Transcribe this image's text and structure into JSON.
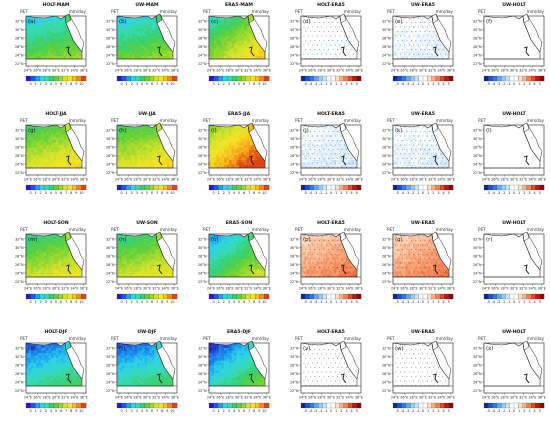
{
  "figure": {
    "corner_label": "PET",
    "unit": "mm/day",
    "lat_ticks": [
      "32°N",
      "30°N",
      "28°N",
      "26°N",
      "24°N",
      "22°N"
    ],
    "lon_ticks": [
      "24°E",
      "26°E",
      "28°E",
      "30°E",
      "32°E",
      "34°E",
      "36°E"
    ],
    "abs_colorbar": {
      "ticks": [
        "0",
        "1",
        "2",
        "3",
        "4",
        "5",
        "6",
        "7",
        "8",
        "9",
        "10"
      ],
      "colors": [
        "#2e17c9",
        "#1f55e6",
        "#1aa2f0",
        "#2fd2e8",
        "#37dbb0",
        "#37cf72",
        "#5fd13a",
        "#9ad82f",
        "#d2e22a",
        "#f3e523",
        "#f8c01e",
        "#f28a18",
        "#e04414"
      ]
    },
    "diff_colorbar": {
      "ticks": [
        "-5",
        "-4",
        "-3",
        "-2",
        "-1",
        "0",
        "1",
        "2",
        "3",
        "4",
        "5"
      ],
      "colors": [
        "#0b2a8f",
        "#1f4fd2",
        "#2e7ae8",
        "#5ea6f2",
        "#95c9f6",
        "#c8e4fa",
        "#ffffff",
        "#ffffff",
        "#fde0c8",
        "#fbb088",
        "#f47f4e",
        "#e44a23",
        "#c4150f",
        "#8e0606"
      ]
    }
  },
  "chart_data": [
    {
      "type": "heatmap",
      "letter": "(a)",
      "title": "HOLT-MAM",
      "variable": "PET",
      "unit": "mm/day",
      "colorbar": "abs",
      "mean_value": 4.5
    },
    {
      "type": "heatmap",
      "letter": "(b)",
      "title": "UW-MAM",
      "variable": "PET",
      "unit": "mm/day",
      "colorbar": "abs",
      "mean_value": 4.5
    },
    {
      "type": "heatmap",
      "letter": "(c)",
      "title": "ERA5-MAM",
      "variable": "PET",
      "unit": "mm/day",
      "colorbar": "abs",
      "mean_value": 6
    },
    {
      "type": "heatmap",
      "letter": "(d)",
      "title": "HOLT-ERA5",
      "variable": "PET",
      "unit": "mm/day",
      "colorbar": "diff",
      "mean_value": -0.3,
      "stippled": true
    },
    {
      "type": "heatmap",
      "letter": "(e)",
      "title": "UW-ERA5",
      "variable": "PET",
      "unit": "mm/day",
      "colorbar": "diff",
      "mean_value": -0.6,
      "stippled": true
    },
    {
      "type": "heatmap",
      "letter": "(f)",
      "title": "UW-HOLT",
      "variable": "PET",
      "unit": "mm/day",
      "colorbar": "diff",
      "mean_value": 0,
      "stippled": false
    },
    {
      "type": "heatmap",
      "letter": "(g)",
      "title": "HOLT-JJA",
      "variable": "PET",
      "unit": "mm/day",
      "colorbar": "abs",
      "mean_value": 6.5
    },
    {
      "type": "heatmap",
      "letter": "(h)",
      "title": "UW-JJA",
      "variable": "PET",
      "unit": "mm/day",
      "colorbar": "abs",
      "mean_value": 6.5
    },
    {
      "type": "heatmap",
      "letter": "(i)",
      "title": "ERA5-JJA",
      "variable": "PET",
      "unit": "mm/day",
      "colorbar": "abs",
      "mean_value": 8.5
    },
    {
      "type": "heatmap",
      "letter": "(j)",
      "title": "HOLT-ERA5",
      "variable": "PET",
      "unit": "mm/day",
      "colorbar": "diff",
      "mean_value": -0.8,
      "stippled": true
    },
    {
      "type": "heatmap",
      "letter": "(k)",
      "title": "UW-ERA5",
      "variable": "PET",
      "unit": "mm/day",
      "colorbar": "diff",
      "mean_value": -0.7,
      "stippled": true
    },
    {
      "type": "heatmap",
      "letter": "(l)",
      "title": "UW-HOLT",
      "variable": "PET",
      "unit": "mm/day",
      "colorbar": "diff",
      "mean_value": 0,
      "stippled": false
    },
    {
      "type": "heatmap",
      "letter": "(m)",
      "title": "HOLT-SON",
      "variable": "PET",
      "unit": "mm/day",
      "colorbar": "abs",
      "mean_value": 6
    },
    {
      "type": "heatmap",
      "letter": "(n)",
      "title": "UW-SON",
      "variable": "PET",
      "unit": "mm/day",
      "colorbar": "abs",
      "mean_value": 6
    },
    {
      "type": "heatmap",
      "letter": "(o)",
      "title": "ERA5-SON",
      "variable": "PET",
      "unit": "mm/day",
      "colorbar": "abs",
      "mean_value": 4.5
    },
    {
      "type": "heatmap",
      "letter": "(p)",
      "title": "HOLT-ERA5",
      "variable": "PET",
      "unit": "mm/day",
      "colorbar": "diff",
      "mean_value": 2.2,
      "stippled": true
    },
    {
      "type": "heatmap",
      "letter": "(q)",
      "title": "UW-ERA5",
      "variable": "PET",
      "unit": "mm/day",
      "colorbar": "diff",
      "mean_value": 2.2,
      "stippled": true
    },
    {
      "type": "heatmap",
      "letter": "(r)",
      "title": "UW-HOLT",
      "variable": "PET",
      "unit": "mm/day",
      "colorbar": "diff",
      "mean_value": 0,
      "stippled": false
    },
    {
      "type": "heatmap",
      "letter": "(s)",
      "title": "HOLT-DJF",
      "variable": "PET",
      "unit": "mm/day",
      "colorbar": "abs",
      "mean_value": 3
    },
    {
      "type": "heatmap",
      "letter": "(t)",
      "title": "UW-DJF",
      "variable": "PET",
      "unit": "mm/day",
      "colorbar": "abs",
      "mean_value": 3
    },
    {
      "type": "heatmap",
      "letter": "(u)",
      "title": "ERA5-DJF",
      "variable": "PET",
      "unit": "mm/day",
      "colorbar": "abs",
      "mean_value": 3.2
    },
    {
      "type": "heatmap",
      "letter": "(v)",
      "title": "HOLT-ERA5",
      "variable": "PET",
      "unit": "mm/day",
      "colorbar": "diff",
      "mean_value": 0.1,
      "stippled": true
    },
    {
      "type": "heatmap",
      "letter": "(w)",
      "title": "UW-ERA5",
      "variable": "PET",
      "unit": "mm/day",
      "colorbar": "diff",
      "mean_value": 0.1,
      "stippled": true
    },
    {
      "type": "heatmap",
      "letter": "(x)",
      "title": "UW-HOLT",
      "variable": "PET",
      "unit": "mm/day",
      "colorbar": "diff",
      "mean_value": 0,
      "stippled": false
    }
  ]
}
